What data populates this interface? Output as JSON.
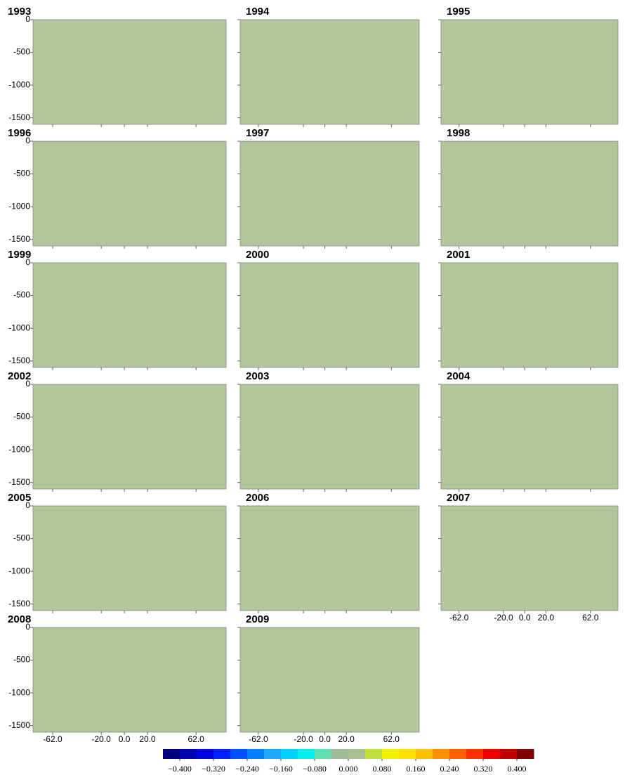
{
  "chart_data": {
    "type": "contour",
    "panels": [
      "1993",
      "1994",
      "1995",
      "1996",
      "1997",
      "1998",
      "1999",
      "2000",
      "2001",
      "2002",
      "2003",
      "2004",
      "2005",
      "2006",
      "2007",
      "2008",
      "2009"
    ],
    "xlim": [
      -79,
      88
    ],
    "xticks": [
      {
        "value": -62,
        "label": "-62.0"
      },
      {
        "value": -20,
        "label": "-20.0"
      },
      {
        "value": 0,
        "label": "0.0"
      },
      {
        "value": 20,
        "label": "20.0"
      },
      {
        "value": 62,
        "label": "62.0"
      }
    ],
    "ylim": [
      -1600,
      0
    ],
    "yticks": [
      0,
      -500,
      -1000,
      -1500
    ],
    "colorbar": {
      "lim": [
        -0.44,
        0.44
      ],
      "colors": [
        "#00007f",
        "#0000b0",
        "#0000e0",
        "#0020ff",
        "#0050ff",
        "#0080ff",
        "#20a8ff",
        "#00d0ff",
        "#00f0f0",
        "#60e0b0",
        "#a0bc98",
        "#a8c090",
        "#c0e040",
        "#f0f000",
        "#ffe000",
        "#ffc000",
        "#ff9000",
        "#ff6000",
        "#ff3000",
        "#f00000",
        "#c00000",
        "#800000"
      ],
      "ticks": [
        {
          "value": -0.4,
          "label": "−0.400"
        },
        {
          "value": -0.32,
          "label": "−0.320"
        },
        {
          "value": -0.24,
          "label": "−0.240"
        },
        {
          "value": -0.16,
          "label": "−0.160"
        },
        {
          "value": -0.08,
          "label": "−0.080"
        },
        {
          "value": 0,
          "label": "0.000"
        },
        {
          "value": 0.08,
          "label": "0.080"
        },
        {
          "value": 0.16,
          "label": "0.160"
        },
        {
          "value": 0.24,
          "label": "0.240"
        },
        {
          "value": 0.32,
          "label": "0.320"
        },
        {
          "value": 0.4,
          "label": "0.400"
        }
      ]
    }
  }
}
